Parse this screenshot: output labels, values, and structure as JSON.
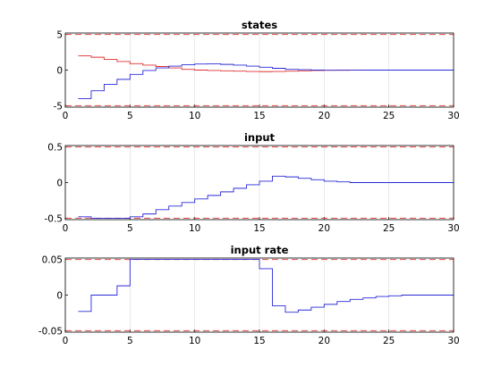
{
  "chart_data": [
    {
      "type": "line",
      "title": "states",
      "xlim": [
        0,
        30
      ],
      "ylim": [
        -5.2,
        5.2
      ],
      "xticks": [
        0,
        5,
        10,
        15,
        20,
        25,
        30
      ],
      "yticks": [
        5,
        0,
        -5
      ],
      "grid": true,
      "bounds": [
        {
          "value": 5,
          "color": "#e24a4a"
        },
        {
          "value": -5,
          "color": "#e24a4a"
        }
      ],
      "series": [
        {
          "color": "#e03030",
          "step": true,
          "x": [
            1,
            2,
            3,
            4,
            5,
            6,
            7,
            8,
            9,
            10,
            11,
            12,
            13,
            14,
            15,
            16,
            17,
            18,
            19,
            20,
            21,
            22,
            23,
            24,
            25,
            26,
            27,
            28,
            29,
            30
          ],
          "values": [
            2.0,
            1.8,
            1.5,
            1.2,
            0.9,
            0.7,
            0.5,
            0.3,
            0.1,
            0.0,
            -0.05,
            -0.1,
            -0.15,
            -0.2,
            -0.22,
            -0.2,
            -0.15,
            -0.1,
            -0.05,
            -0.02,
            0,
            0,
            0,
            0,
            0,
            0,
            0,
            0,
            0,
            0
          ]
        },
        {
          "color": "#2a2ad8",
          "step": true,
          "x": [
            1,
            2,
            3,
            4,
            5,
            6,
            7,
            8,
            9,
            10,
            11,
            12,
            13,
            14,
            15,
            16,
            17,
            18,
            19,
            20,
            21,
            22,
            23,
            24,
            25,
            26,
            27,
            28,
            29,
            30
          ],
          "values": [
            -4.0,
            -2.9,
            -2.0,
            -1.3,
            -0.6,
            -0.05,
            0.3,
            0.55,
            0.75,
            0.85,
            0.88,
            0.8,
            0.7,
            0.55,
            0.4,
            0.25,
            0.1,
            0.05,
            0.0,
            -0.02,
            -0.02,
            -0.01,
            0,
            0,
            0,
            0,
            0,
            0,
            0,
            0
          ]
        }
      ]
    },
    {
      "type": "line",
      "title": "input",
      "xlim": [
        0,
        30
      ],
      "ylim": [
        -0.52,
        0.52
      ],
      "xticks": [
        0,
        5,
        10,
        15,
        20,
        25,
        30
      ],
      "yticks": [
        0.5,
        0,
        -0.5
      ],
      "grid": true,
      "bounds": [
        {
          "value": 0.5,
          "color": "#e24a4a"
        },
        {
          "value": -0.5,
          "color": "#e24a4a"
        }
      ],
      "series": [
        {
          "color": "#2a2ad8",
          "step": true,
          "x": [
            1,
            2,
            3,
            4,
            5,
            6,
            7,
            8,
            9,
            10,
            11,
            12,
            13,
            14,
            15,
            16,
            17,
            18,
            19,
            20,
            21,
            22,
            23,
            24,
            25,
            26,
            27,
            28,
            29,
            30
          ],
          "values": [
            -0.48,
            -0.5,
            -0.5,
            -0.5,
            -0.48,
            -0.44,
            -0.38,
            -0.33,
            -0.28,
            -0.23,
            -0.18,
            -0.13,
            -0.08,
            -0.03,
            0.02,
            0.09,
            0.08,
            0.06,
            0.04,
            0.02,
            0.01,
            0.0,
            0.0,
            0.0,
            0.0,
            0.0,
            0.0,
            0.0,
            0.0,
            0.0
          ]
        }
      ]
    },
    {
      "type": "line",
      "title": "input rate",
      "xlim": [
        0,
        30
      ],
      "ylim": [
        -0.052,
        0.052
      ],
      "xticks": [
        0,
        5,
        10,
        15,
        20,
        25,
        30
      ],
      "yticks": [
        0.05,
        0,
        -0.05
      ],
      "grid": true,
      "bounds": [
        {
          "value": 0.05,
          "color": "#e24a4a"
        },
        {
          "value": -0.05,
          "color": "#e24a4a"
        }
      ],
      "series": [
        {
          "color": "#2a2ad8",
          "step": true,
          "x": [
            1,
            2,
            3,
            4,
            5,
            6,
            7,
            8,
            9,
            10,
            11,
            12,
            13,
            14,
            15,
            16,
            17,
            18,
            19,
            20,
            21,
            22,
            23,
            24,
            25,
            26,
            27,
            28,
            29,
            30
          ],
          "values": [
            -0.023,
            0.0,
            0.0,
            0.013,
            0.05,
            0.05,
            0.05,
            0.05,
            0.05,
            0.05,
            0.05,
            0.05,
            0.05,
            0.05,
            0.037,
            -0.015,
            -0.024,
            -0.021,
            -0.017,
            -0.013,
            -0.009,
            -0.006,
            -0.004,
            -0.002,
            -0.001,
            0.0,
            0.0,
            0.0,
            0.0,
            0.0
          ]
        }
      ]
    }
  ]
}
